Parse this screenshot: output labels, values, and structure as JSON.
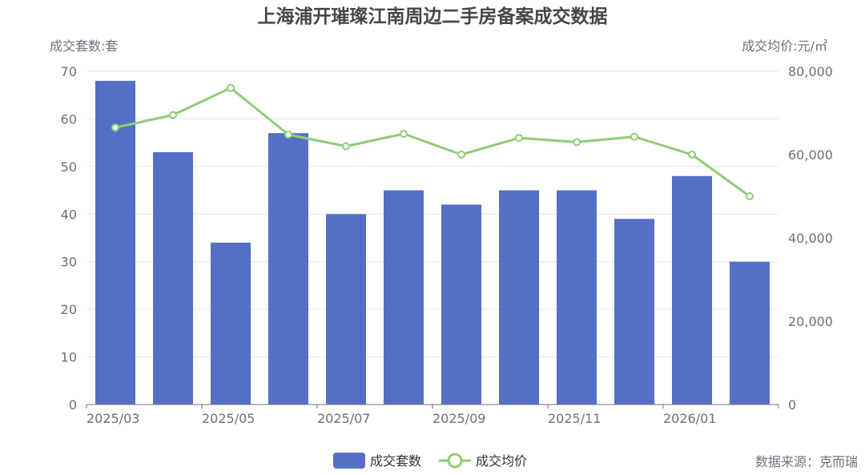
{
  "title": "上海浦开璀璨江南周边二手房备案成交数据",
  "source": "数据来源：克而瑞",
  "colors": {
    "bar": "#5470c6",
    "line": "#91cc75",
    "grid": "#e0e6f1",
    "axis": "#6e7079",
    "title": "#464646"
  },
  "chart_data": {
    "type": "bar",
    "categories": [
      "2025/03",
      "2025/04",
      "2025/05",
      "2025/06",
      "2025/07",
      "2025/08",
      "2025/09",
      "2025/10",
      "2025/11",
      "2025/12",
      "2026/01",
      "2026/02"
    ],
    "x_tick_labels": [
      "2025/03",
      "2025/05",
      "2025/07",
      "2025/09",
      "2025/11",
      "2026/01"
    ],
    "y_left_label": "成交套数:套",
    "y_right_label": "成交均价:元/㎡",
    "y_left_ticks": [
      "0",
      "10",
      "20",
      "30",
      "40",
      "50",
      "60",
      "70"
    ],
    "y_right_ticks": [
      "0",
      "20,000",
      "40,000",
      "60,000",
      "80,000"
    ],
    "y_left_lim": [
      0,
      70
    ],
    "y_right_lim": [
      0,
      80000
    ],
    "series": [
      {
        "name": "成交套数",
        "type": "bar",
        "axis": "left",
        "values": [
          68,
          53,
          34,
          57,
          40,
          45,
          42,
          45,
          45,
          39,
          48,
          30
        ]
      },
      {
        "name": "成交均价",
        "type": "line",
        "axis": "right",
        "values": [
          66500,
          69500,
          76000,
          64800,
          62000,
          65000,
          60000,
          64000,
          63000,
          64300,
          60000,
          50000
        ]
      }
    ],
    "legend_position": "bottom-center",
    "grid": true
  }
}
